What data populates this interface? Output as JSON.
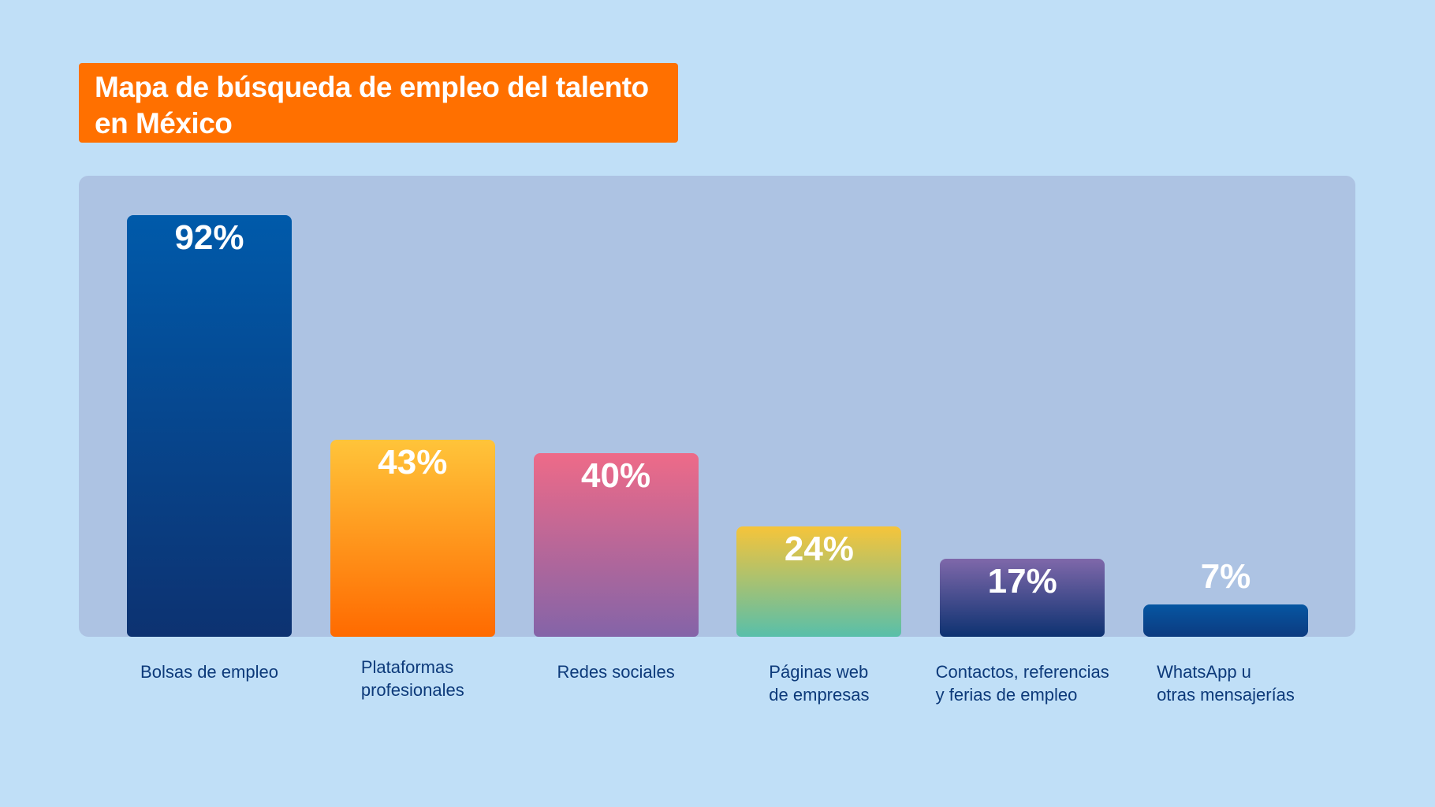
{
  "title": {
    "line1": "Mapa de búsqueda de empleo del talento",
    "line2": "en México"
  },
  "colors": {
    "background": "#c0dff7",
    "panel": "#adc3e3",
    "title_box": "#ff7000",
    "category_text": "#0d3a7a"
  },
  "chart_data": {
    "type": "bar",
    "title": "Mapa de búsqueda de empleo del talento en México",
    "categories": [
      "Bolsas de empleo",
      "Plataformas\nprofesionales",
      "Redes sociales",
      "Páginas web\nde empresas",
      "Contactos, referencias\ny ferias de empleo",
      "WhatsApp u\notras mensajerías"
    ],
    "values": [
      92,
      43,
      40,
      24,
      17,
      7
    ],
    "labels": [
      "92%",
      "43%",
      "40%",
      "24%",
      "17%",
      "7%"
    ],
    "unit": "%",
    "ylim": [
      0,
      100
    ],
    "grid": false,
    "gradients": [
      [
        "#005aaa",
        "#0d3271"
      ],
      [
        "#ffc43a",
        "#ff6a00"
      ],
      [
        "#ee6a88",
        "#8464a8"
      ],
      [
        "#f6c43a",
        "#58bfaa"
      ],
      [
        "#7f68aa",
        "#0d3271"
      ],
      [
        "#0656a2",
        "#0c3b80"
      ]
    ]
  }
}
